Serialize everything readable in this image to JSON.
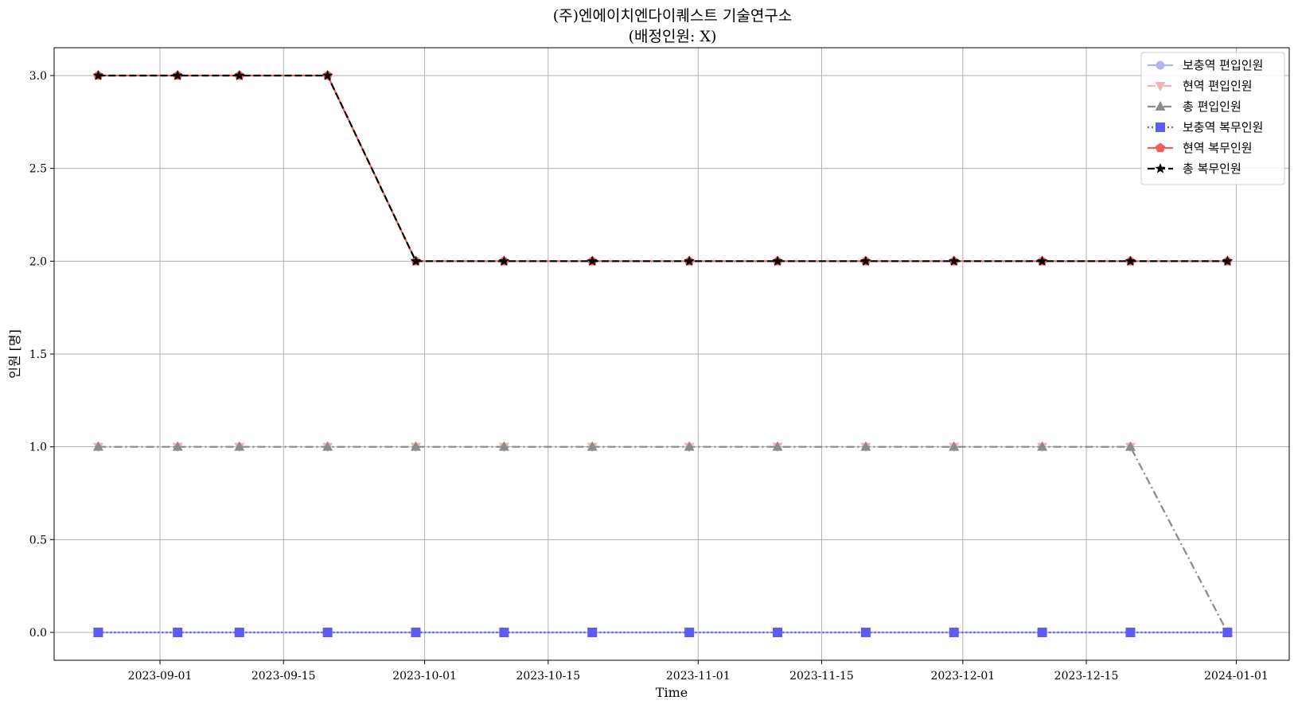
{
  "chart_data": {
    "type": "line",
    "title": "(주)엔에이치엔다이퀘스트 기술연구소",
    "subtitle": "(배정인원: X)",
    "xlabel": "Time",
    "ylabel": "인원 [명]",
    "xlim": [
      "2023-08-20",
      "2024-01-07"
    ],
    "ylim": [
      -0.15,
      3.15
    ],
    "x_ticks": [
      "2023-09-01",
      "2023-09-15",
      "2023-10-01",
      "2023-10-15",
      "2023-11-01",
      "2023-11-15",
      "2023-12-01",
      "2023-12-15",
      "2024-01-01"
    ],
    "y_ticks": [
      0.0,
      0.5,
      1.0,
      1.5,
      2.0,
      2.5,
      3.0
    ],
    "grid": true,
    "legend_position": "top-right",
    "x": [
      "2023-08-25",
      "2023-09-03",
      "2023-09-10",
      "2023-09-20",
      "2023-09-30",
      "2023-10-10",
      "2023-10-20",
      "2023-10-31",
      "2023-11-10",
      "2023-11-20",
      "2023-11-30",
      "2023-12-10",
      "2023-12-20",
      "2023-12-31"
    ],
    "series": [
      {
        "name": "보충역 편입인원",
        "values": [
          0,
          0,
          0,
          0,
          0,
          0,
          0,
          0,
          0,
          0,
          0,
          0,
          0,
          0
        ],
        "color": "#b3b3f2",
        "linestyle": "solid",
        "marker": "circle"
      },
      {
        "name": "현역 편입인원",
        "values": [
          1,
          1,
          1,
          1,
          1,
          1,
          1,
          1,
          1,
          1,
          1,
          1,
          1,
          0
        ],
        "color": "#f2b3b3",
        "linestyle": "dashdot",
        "marker": "triangle-down"
      },
      {
        "name": "총 편입인원",
        "values": [
          1,
          1,
          1,
          1,
          1,
          1,
          1,
          1,
          1,
          1,
          1,
          1,
          1,
          0
        ],
        "color": "#8c8c8c",
        "linestyle": "dashdot",
        "marker": "triangle-up"
      },
      {
        "name": "보충역 복무인원",
        "values": [
          0,
          0,
          0,
          0,
          0,
          0,
          0,
          0,
          0,
          0,
          0,
          0,
          0,
          0
        ],
        "color": "#5c5cf2",
        "linestyle": "dotted",
        "marker": "square"
      },
      {
        "name": "현역 복무인원",
        "values": [
          3,
          3,
          3,
          3,
          2,
          2,
          2,
          2,
          2,
          2,
          2,
          2,
          2,
          2
        ],
        "color": "#f25c5c",
        "linestyle": "solid",
        "marker": "pentagon"
      },
      {
        "name": "총 복무인원",
        "values": [
          3,
          3,
          3,
          3,
          2,
          2,
          2,
          2,
          2,
          2,
          2,
          2,
          2,
          2
        ],
        "color": "#000000",
        "linestyle": "dashed",
        "marker": "star"
      }
    ]
  }
}
